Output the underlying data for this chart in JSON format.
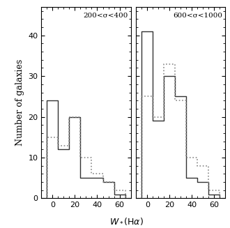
{
  "panel1_label": "200<σ<400",
  "panel2_label": "600<σ<1000",
  "xlabel": "$W_*(\\mathrm{H}\\alpha)$",
  "ylabel": "Number of galaxies",
  "ylim": [
    0,
    47
  ],
  "xlim": [
    -10,
    70
  ],
  "yticks": [
    0,
    10,
    20,
    30,
    40
  ],
  "xticks": [
    0,
    20,
    40,
    60
  ],
  "bin_edges": [
    -5,
    5,
    15,
    25,
    35,
    45,
    55,
    65
  ],
  "panel1_solid": [
    24,
    12,
    20,
    5,
    5,
    4,
    1
  ],
  "panel1_dotted": [
    15,
    13,
    20,
    10,
    6,
    4,
    2
  ],
  "panel2_solid": [
    41,
    19,
    30,
    25,
    5,
    4,
    1
  ],
  "panel2_dotted": [
    25,
    20,
    33,
    24,
    10,
    8,
    2
  ],
  "solid_color": "#333333",
  "dotted_color": "#888888",
  "title_fontsize": 7.5,
  "label_fontsize": 9,
  "tick_fontsize": 8
}
